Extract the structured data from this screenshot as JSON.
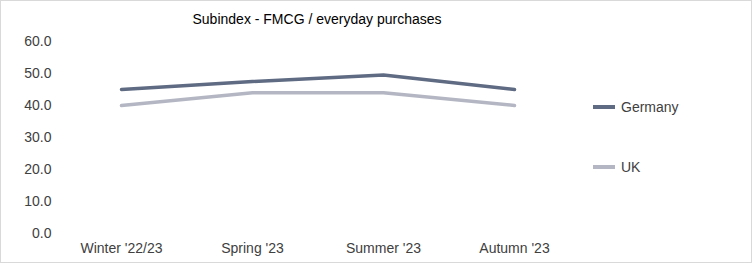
{
  "chart_data": {
    "type": "line",
    "title": "Subindex - FMCG / everyday purchases",
    "categories": [
      "Winter '22/23",
      "Spring '23",
      "Summer '23",
      "Autumn '23"
    ],
    "series": [
      {
        "name": "Germany",
        "color": "#5f6b82",
        "values": [
          45.0,
          47.5,
          49.5,
          45.0
        ]
      },
      {
        "name": "UK",
        "color": "#b4b7c3",
        "values": [
          40.0,
          44.0,
          44.0,
          40.0
        ]
      }
    ],
    "ylim": [
      0,
      60
    ],
    "yticks": [
      {
        "value": 0,
        "label": "0.0"
      },
      {
        "value": 10,
        "label": "10.0"
      },
      {
        "value": 20,
        "label": "20.0"
      },
      {
        "value": 30,
        "label": "30.0"
      },
      {
        "value": 40,
        "label": "40.0"
      },
      {
        "value": 50,
        "label": "50.0"
      },
      {
        "value": 60,
        "label": "60.0"
      }
    ],
    "grid": false,
    "legend": "right"
  }
}
